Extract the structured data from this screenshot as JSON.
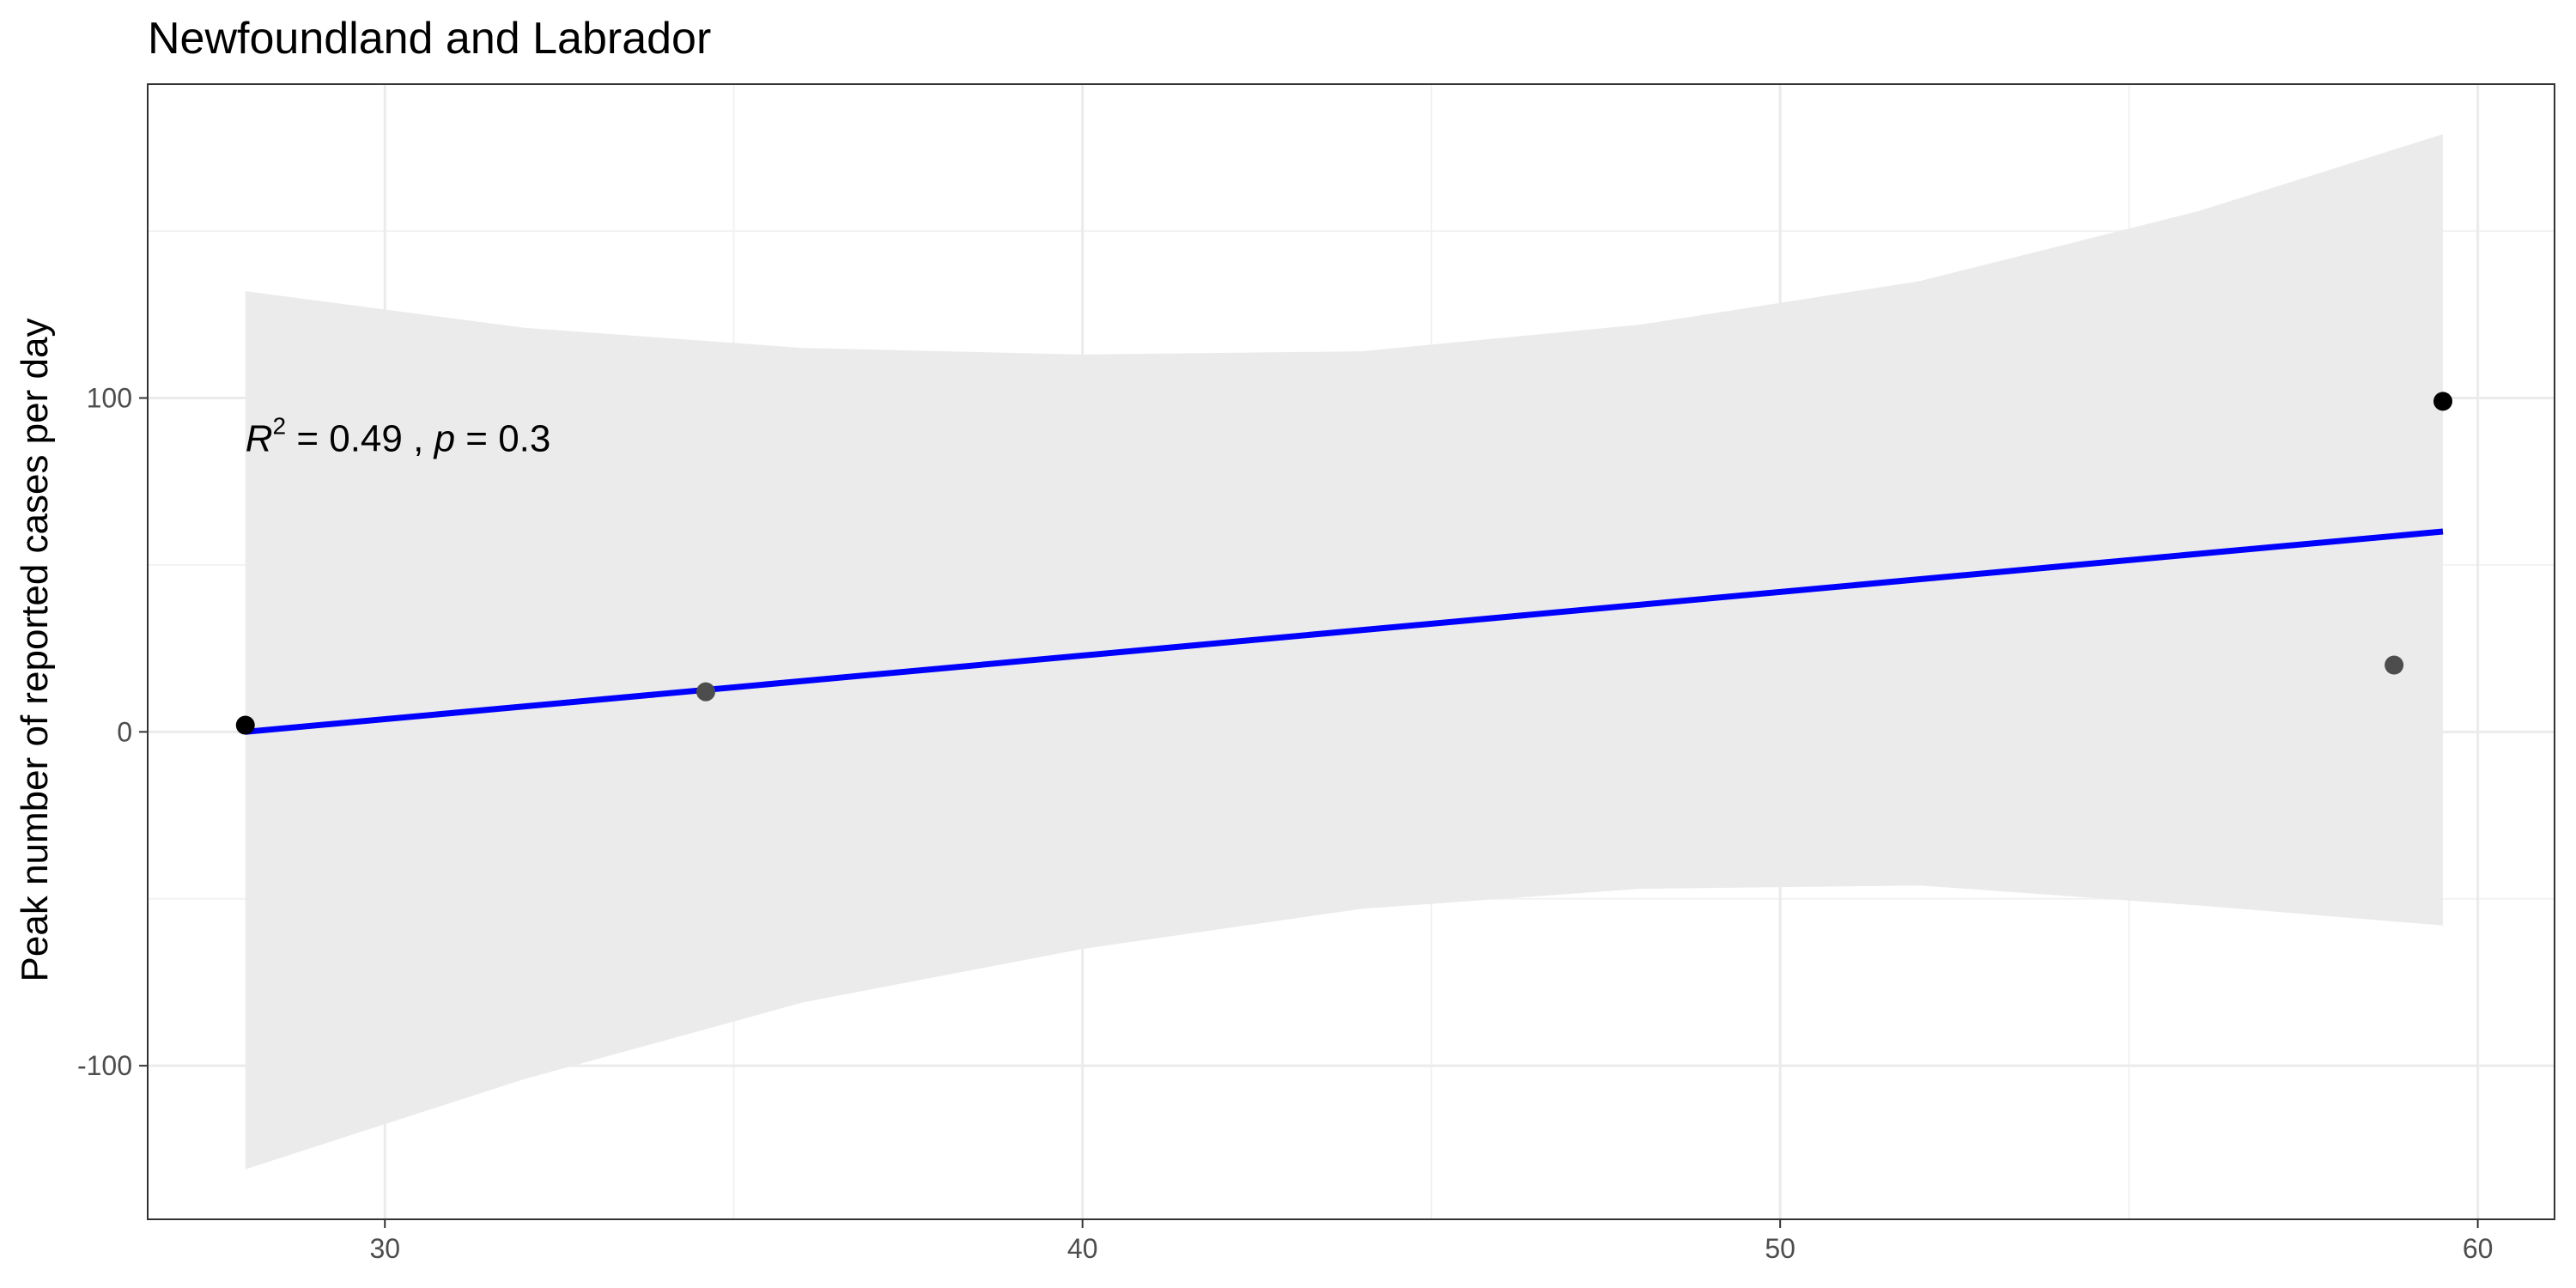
{
  "chart_data": {
    "type": "scatter",
    "title": "Newfoundland and Labrador",
    "xlabel": "",
    "ylabel": "Peak number of reported cases per day",
    "xlim": [
      26.6,
      61.1
    ],
    "ylim": [
      -146,
      194
    ],
    "x_ticks": [
      30,
      40,
      50,
      60
    ],
    "y_ticks": [
      -100,
      0,
      100
    ],
    "x_tick_labels": [
      "30",
      "40",
      "50",
      "60"
    ],
    "y_tick_labels": [
      "-100",
      "0",
      "100"
    ],
    "x_minor": [
      35,
      45,
      55
    ],
    "y_minor": [
      -50,
      50,
      150
    ],
    "grid": true,
    "points": [
      {
        "x": 28.0,
        "y": 2
      },
      {
        "x": 34.6,
        "y": 12
      },
      {
        "x": 58.8,
        "y": 20
      },
      {
        "x": 59.5,
        "y": 99
      }
    ],
    "fit_line": {
      "x": [
        28.0,
        59.5
      ],
      "y": [
        0,
        60
      ],
      "color": "#0000ff"
    },
    "confidence_band": {
      "x": [
        28.0,
        32.0,
        36.0,
        40.0,
        44.0,
        48.0,
        52.0,
        56.0,
        59.5
      ],
      "upper": [
        132,
        121,
        115,
        113,
        114,
        122,
        135,
        156,
        179
      ],
      "lower": [
        -131,
        -104,
        -81,
        -65,
        -53,
        -47,
        -46,
        -52,
        -58
      ],
      "color": "#ebebeb"
    },
    "annotation": {
      "r_symbol": "R",
      "r_exponent": "2",
      "r_value": " = 0.49 , ",
      "p_symbol": "p",
      "p_value": " = 0.3",
      "x": 28.0,
      "y": 84
    },
    "colors": {
      "points": "#4d4d4d",
      "points_dark": "#000000",
      "line": "#0000ff",
      "band": "#ebebeb"
    }
  }
}
